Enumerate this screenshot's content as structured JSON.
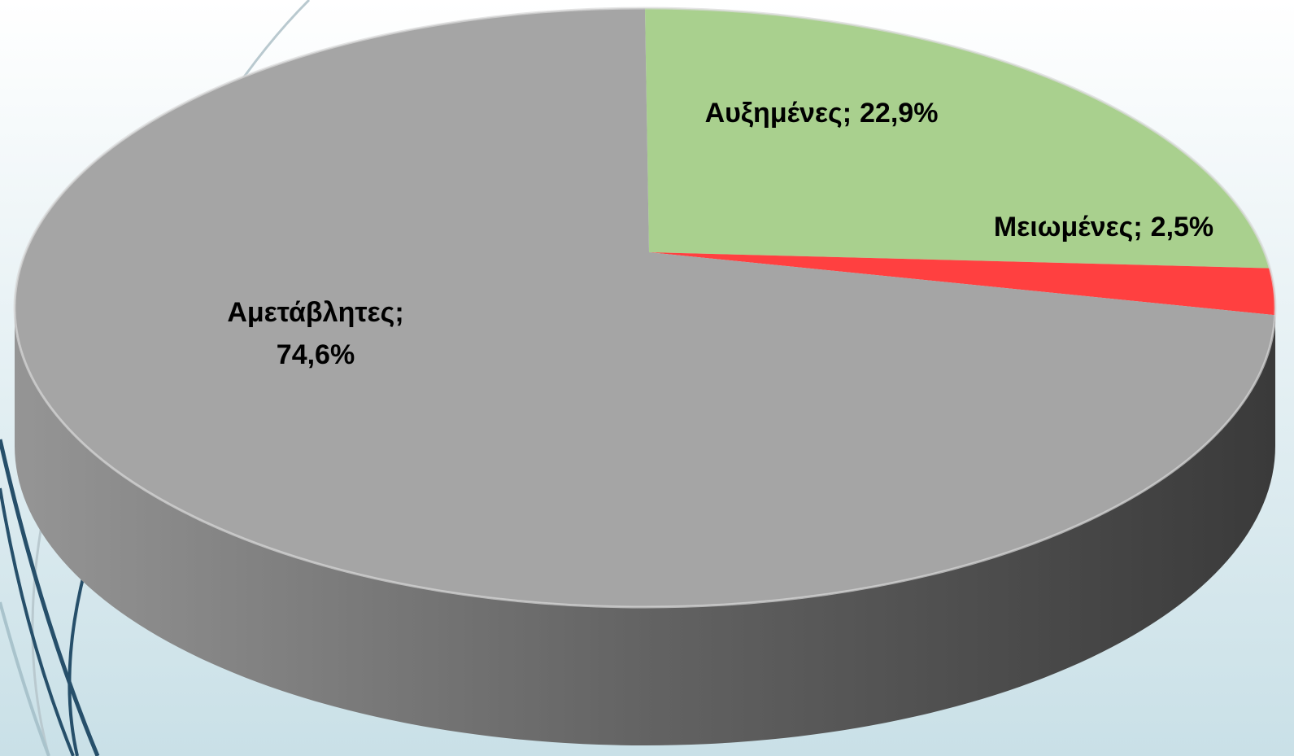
{
  "chart_data": {
    "type": "pie",
    "categories": [
      "Αυξημένες",
      "Μειωμένες",
      "Αμετάβλητες"
    ],
    "values": [
      22.9,
      2.5,
      74.6
    ],
    "value_labels": [
      "22,9%",
      "2,5%",
      "74,6%"
    ],
    "separator": ";",
    "colors": [
      "#a9d08e",
      "#ff4040",
      "#a5a5a5"
    ]
  }
}
